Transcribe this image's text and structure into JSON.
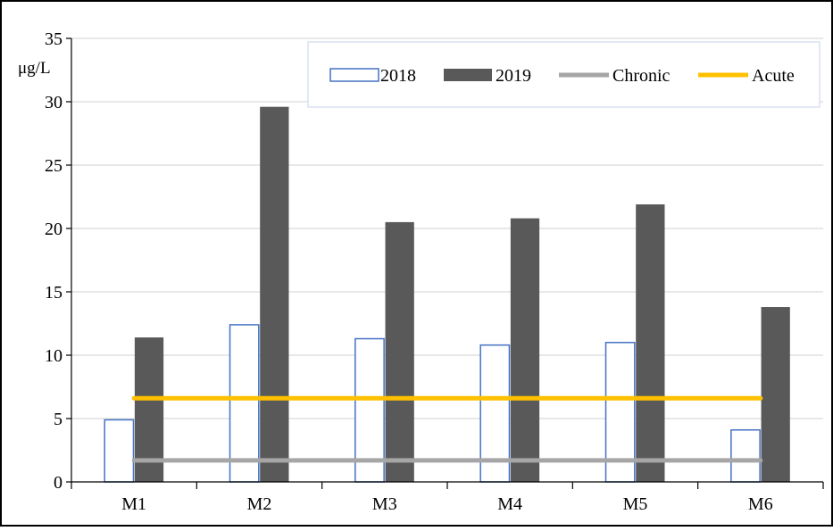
{
  "chart_data": {
    "type": "bar",
    "title": "",
    "xlabel": "",
    "ylabel": "μg/L",
    "categories": [
      "M1",
      "M2",
      "M3",
      "M4",
      "M5",
      "M6"
    ],
    "ylim": [
      0,
      35
    ],
    "yticks": [
      0,
      5,
      10,
      15,
      20,
      25,
      30,
      35
    ],
    "grid": true,
    "legend_position": "top-right",
    "series": [
      {
        "name": "2018",
        "kind": "bar",
        "style": "outline",
        "color": "#4472C4",
        "values": [
          4.9,
          12.4,
          11.3,
          10.8,
          11.0,
          4.1
        ]
      },
      {
        "name": "2019",
        "kind": "bar",
        "style": "filled",
        "color": "#595959",
        "values": [
          11.4,
          29.6,
          20.5,
          20.8,
          21.9,
          13.8
        ]
      },
      {
        "name": "Chronic",
        "kind": "line",
        "color": "#A6A6A6",
        "values": [
          1.7,
          1.7,
          1.7,
          1.7,
          1.7,
          1.7
        ]
      },
      {
        "name": "Acute",
        "kind": "line",
        "color": "#FFC000",
        "values": [
          6.6,
          6.6,
          6.6,
          6.6,
          6.6,
          6.6
        ]
      }
    ]
  }
}
